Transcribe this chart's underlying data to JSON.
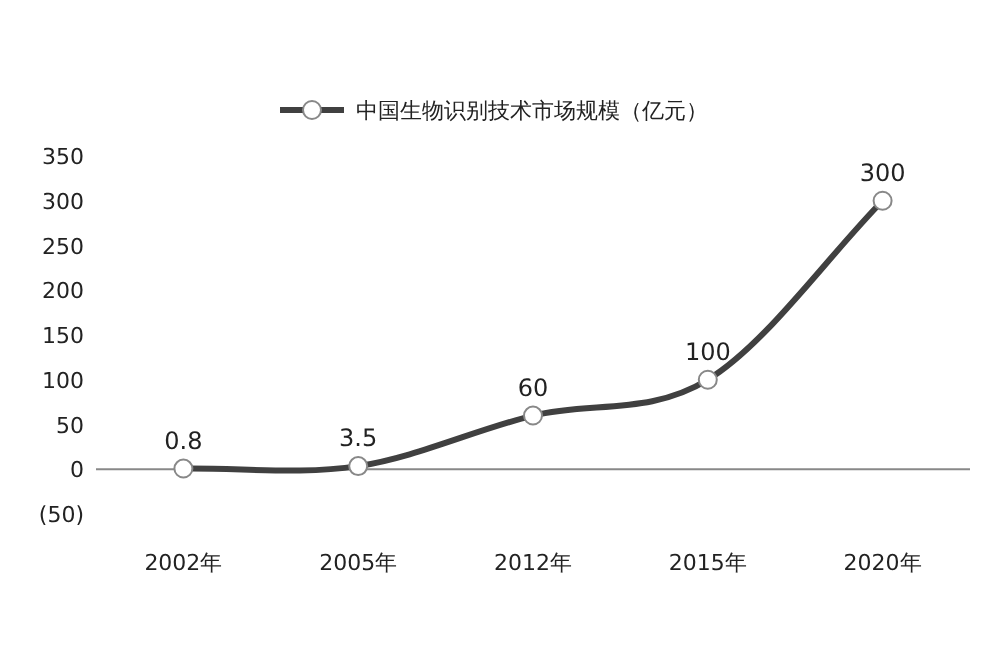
{
  "chart_data": {
    "type": "line",
    "categories": [
      "2002年",
      "2005年",
      "2012年",
      "2015年",
      "2020年"
    ],
    "series": [
      {
        "name": "中国生物识别技术市场规模（亿元）",
        "color": "#404040",
        "values": [
          0.8,
          3.5,
          60,
          100,
          300
        ]
      }
    ],
    "ylim": [
      -50,
      350
    ],
    "yticks": [
      {
        "value": -50,
        "label": "(50)"
      },
      0,
      50,
      100,
      150,
      200,
      250,
      300,
      350
    ],
    "marker": "circle",
    "data_labels": true,
    "legend": "top"
  }
}
